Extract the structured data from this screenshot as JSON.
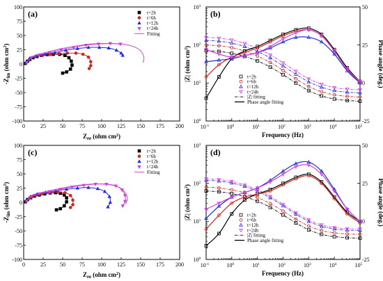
{
  "colors": {
    "t2": "#000000",
    "t6": "#c8281e",
    "t12": "#1e2ddc",
    "t24": "#d23cdc",
    "fit": "#c87ad2"
  },
  "panel_labels": [
    "(a)",
    "(b)",
    "(c)",
    "(d)"
  ],
  "nyquist_legend": [
    "t=2h",
    "t=6h",
    "t=12h",
    "t=24h",
    "Fitting"
  ],
  "bode_legend_markers": [
    "t=2h",
    "t=6h",
    "t=12h",
    "t=24h"
  ],
  "bode_legend_lines": [
    "|Z| fitting",
    "Phase angle fitting"
  ],
  "nyquist_axes": {
    "xlabel": "Z",
    "xlabel_sub": "re",
    "xlabel_unit": " (ohm cm",
    "ylabel": "-Z",
    "ylabel_sub": "im",
    "ylabel_unit": " (ohm cm",
    "unit_sup": "2",
    "unit_close": ")",
    "xticks": [
      "0",
      "25",
      "50",
      "75",
      "100",
      "125",
      "150",
      "175",
      "200"
    ],
    "yticks": [
      "100",
      "75",
      "50",
      "25",
      "0",
      "-25",
      "-50",
      "-75",
      "-100"
    ]
  },
  "bode_axes": {
    "xlabel": "Frequency (Hz)",
    "ylabel_left": "|Z| (ohm cm",
    "ylabel_right": "Phase angle (deg.)",
    "y_left_ticks_base": "10",
    "y_left_ticks_exp": [
      "0",
      "1",
      "2",
      "3"
    ],
    "x_ticks_base": "10",
    "x_ticks_exp": [
      "-1",
      "0",
      "1",
      "2",
      "3",
      "4",
      "5"
    ],
    "y_right_ticks": [
      "50",
      "25",
      "0",
      "-25"
    ]
  },
  "chart_data": [
    {
      "panel": "(a)",
      "type": "scatter",
      "xlabel": "Zre (ohm cm2)",
      "ylabel": "-Zim (ohm cm2)",
      "xlim": [
        0,
        200
      ],
      "ylim": [
        -100,
        100
      ],
      "series": [
        {
          "name": "t=2h",
          "marker": "square",
          "x": [
            2,
            5,
            8,
            12,
            17,
            23,
            30,
            38,
            46,
            53,
            58,
            61,
            62,
            60,
            55,
            50
          ],
          "y": [
            1,
            5,
            8,
            11,
            13,
            15,
            16.5,
            17,
            17,
            15,
            11,
            5,
            -2,
            -9,
            -14,
            -16
          ]
        },
        {
          "name": "t=6h",
          "marker": "circle",
          "x": [
            3,
            8,
            15,
            24,
            34,
            45,
            56,
            67,
            76,
            83,
            86,
            86,
            84
          ],
          "y": [
            2,
            9,
            13,
            15,
            16.5,
            18,
            19,
            19,
            17,
            12,
            4,
            -3,
            -8
          ]
        },
        {
          "name": "t=12h",
          "marker": "triangle-up",
          "x": [
            3,
            8,
            16,
            27,
            40,
            54,
            69,
            83,
            97,
            109,
            119,
            125,
            127
          ],
          "y": [
            3,
            10,
            14,
            17,
            20,
            24,
            27,
            29,
            29,
            28,
            24,
            19,
            15
          ]
        },
        {
          "name": "t=24h",
          "marker": "triangle-down",
          "x": [
            4,
            10,
            20,
            33,
            48,
            64,
            80,
            96,
            111,
            124
          ],
          "y": [
            3,
            11,
            16,
            20,
            25,
            29,
            33,
            35,
            36,
            35
          ]
        }
      ],
      "fitting": {
        "name": "Fitting",
        "x": [
          2,
          10,
          25,
          45,
          65,
          85,
          105,
          125,
          140,
          150,
          154,
          153
        ],
        "y": [
          0,
          12,
          19,
          26,
          31,
          35,
          36,
          35,
          31,
          23,
          12,
          2
        ]
      }
    },
    {
      "panel": "(b)",
      "type": "line",
      "xlabel": "Frequency (Hz)",
      "ylabel_left": "|Z| (ohm cm2)",
      "ylabel_right": "Phase angle (deg.)",
      "x_scale": "log",
      "xlim": [
        0.1,
        100000
      ],
      "y_left_scale": "log",
      "y_left_lim": [
        1,
        1000
      ],
      "y_right_lim": [
        -25,
        50
      ],
      "log_f": [
        -1,
        -0.5,
        0,
        0.5,
        1,
        1.5,
        2,
        2.5,
        3,
        3.5,
        4,
        4.5,
        5
      ],
      "impedance": [
        {
          "name": "t=2h",
          "log_z": [
            1.85,
            1.83,
            1.78,
            1.7,
            1.58,
            1.42,
            1.22,
            1.0,
            0.8,
            0.66,
            0.58,
            0.54,
            0.52
          ]
        },
        {
          "name": "t=6h",
          "log_z": [
            2.0,
            1.98,
            1.93,
            1.84,
            1.71,
            1.54,
            1.33,
            1.11,
            0.91,
            0.77,
            0.69,
            0.65,
            0.63
          ]
        },
        {
          "name": "t=12h",
          "log_z": [
            2.12,
            2.1,
            2.05,
            1.96,
            1.83,
            1.66,
            1.45,
            1.23,
            1.03,
            0.89,
            0.8,
            0.76,
            0.74
          ]
        },
        {
          "name": "t=24h",
          "log_z": [
            2.2,
            2.18,
            2.13,
            2.04,
            1.91,
            1.74,
            1.53,
            1.31,
            1.11,
            0.97,
            0.88,
            0.84,
            0.82
          ]
        }
      ],
      "phase": [
        {
          "name": "t=2h",
          "deg": [
            -10,
            4,
            16,
            21,
            24,
            28,
            32,
            35,
            36,
            32,
            22,
            10,
            1
          ]
        },
        {
          "name": "t=6h",
          "deg": [
            4,
            12,
            17,
            20,
            23,
            27,
            31,
            34,
            35,
            31,
            21,
            9,
            0
          ]
        },
        {
          "name": "t=12h",
          "deg": [
            14,
            15,
            16,
            18,
            20,
            23,
            27,
            30,
            30,
            27,
            19,
            8,
            0
          ]
        },
        {
          "name": "t=24h",
          "deg": [
            22,
            19,
            17,
            18,
            20,
            24,
            29,
            33,
            35,
            31,
            21,
            9,
            1
          ]
        }
      ]
    },
    {
      "panel": "(c)",
      "type": "scatter",
      "xlabel": "Zre (ohm cm2)",
      "ylabel": "-Zim (ohm cm2)",
      "xlim": [
        0,
        200
      ],
      "ylim": [
        -100,
        100
      ],
      "series": [
        {
          "name": "t=2h",
          "marker": "square",
          "x": [
            2,
            5,
            9,
            14,
            20,
            27,
            34,
            41,
            47,
            52,
            55,
            55,
            52,
            47,
            42
          ],
          "y": [
            1,
            5,
            8,
            11,
            13,
            15,
            16.5,
            17,
            16,
            13,
            8,
            1,
            -6,
            -11,
            -13
          ]
        },
        {
          "name": "t=6h",
          "marker": "circle",
          "x": [
            3,
            8,
            15,
            24,
            34,
            44,
            53,
            60,
            63,
            63,
            60
          ],
          "y": [
            2,
            8,
            12,
            15,
            17,
            18,
            17,
            12,
            4,
            -4,
            -9
          ]
        },
        {
          "name": "t=12h",
          "marker": "triangle-up",
          "x": [
            3,
            9,
            17,
            28,
            41,
            55,
            69,
            83,
            95,
            104,
            110,
            111,
            108
          ],
          "y": [
            3,
            10,
            14,
            17,
            20,
            23,
            25,
            26,
            24,
            19,
            10,
            0,
            -8
          ]
        },
        {
          "name": "t=24h",
          "marker": "triangle-down",
          "x": [
            4,
            10,
            20,
            33,
            47,
            62,
            77,
            92,
            106,
            118,
            126,
            130,
            130,
            127
          ],
          "y": [
            3,
            11,
            15,
            19,
            23,
            27,
            30,
            32,
            32,
            29,
            22,
            12,
            2,
            -6
          ]
        }
      ],
      "fitting": {
        "name": "Fitting",
        "x": [
          2,
          10,
          25,
          45,
          65,
          85,
          105,
          120,
          129,
          133,
          131
        ],
        "y": [
          0,
          12,
          18,
          24,
          29,
          32,
          32,
          28,
          19,
          8,
          -3
        ]
      }
    },
    {
      "panel": "(d)",
      "type": "line",
      "xlabel": "Frequency (Hz)",
      "ylabel_left": "|Z| (ohm cm2)",
      "ylabel_right": "Phase angle (deg.)",
      "x_scale": "log",
      "xlim": [
        0.1,
        100000
      ],
      "y_left_scale": "log",
      "y_left_lim": [
        1,
        1000
      ],
      "y_right_lim": [
        -25,
        50
      ],
      "log_f": [
        -1,
        -0.5,
        0,
        0.5,
        1,
        1.5,
        2,
        2.5,
        3,
        3.5,
        4,
        4.5,
        5
      ],
      "impedance": [
        {
          "name": "t=2h",
          "log_z": [
            1.8,
            1.78,
            1.73,
            1.65,
            1.53,
            1.37,
            1.17,
            0.96,
            0.78,
            0.66,
            0.6,
            0.57,
            0.56
          ]
        },
        {
          "name": "t=6h",
          "log_z": [
            1.9,
            1.88,
            1.83,
            1.75,
            1.63,
            1.47,
            1.27,
            1.06,
            0.88,
            0.76,
            0.7,
            0.67,
            0.66
          ]
        },
        {
          "name": "t=12h",
          "log_z": [
            2.08,
            2.06,
            2.01,
            1.92,
            1.79,
            1.62,
            1.41,
            1.19,
            1.0,
            0.87,
            0.8,
            0.77,
            0.76
          ]
        },
        {
          "name": "t=24h",
          "log_z": [
            2.12,
            2.1,
            2.05,
            1.96,
            1.83,
            1.66,
            1.45,
            1.23,
            1.04,
            0.91,
            0.84,
            0.81,
            0.8
          ]
        }
      ],
      "phase": [
        {
          "name": "t=2h",
          "deg": [
            -16,
            -8,
            5,
            14,
            18,
            21,
            25,
            29,
            31,
            26,
            16,
            6,
            0
          ]
        },
        {
          "name": "t=6h",
          "deg": [
            -5,
            4,
            12,
            16,
            18,
            20,
            24,
            28,
            30,
            25,
            15,
            5,
            -1
          ]
        },
        {
          "name": "t=12h",
          "deg": [
            2,
            10,
            16,
            19,
            22,
            27,
            33,
            38,
            39,
            33,
            21,
            8,
            0
          ]
        },
        {
          "name": "t=24h",
          "deg": [
            8,
            12,
            16,
            19,
            22,
            26,
            31,
            36,
            37,
            31,
            20,
            8,
            0
          ]
        }
      ]
    }
  ]
}
